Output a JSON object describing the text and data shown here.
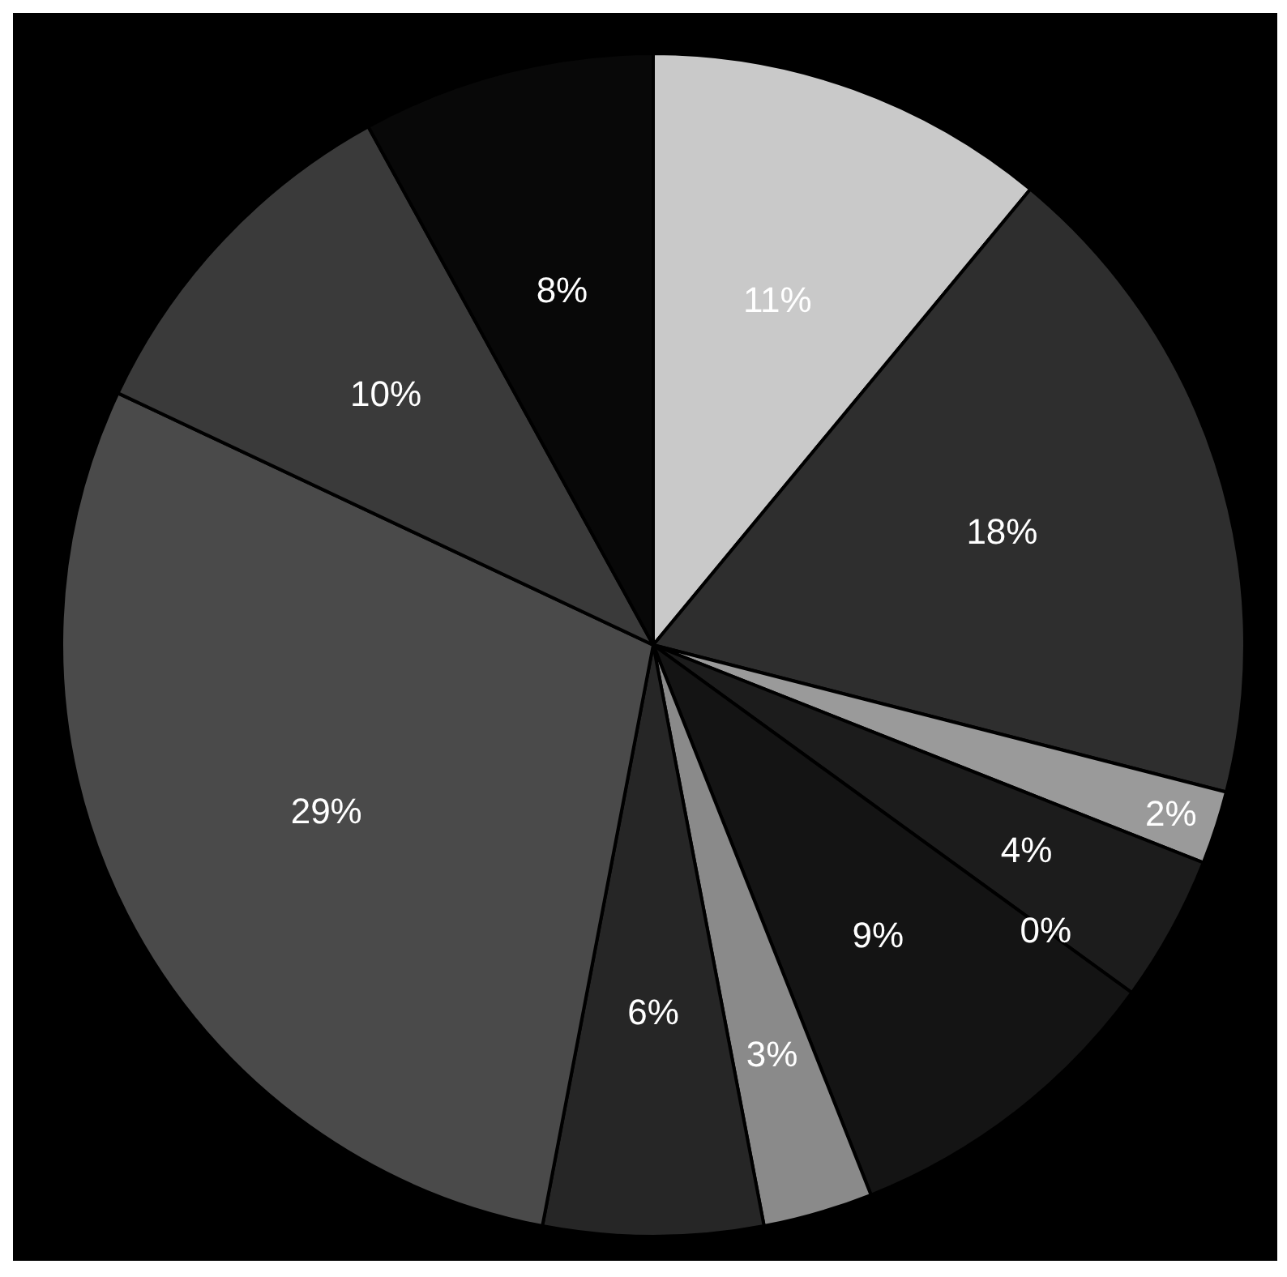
{
  "chart_data": {
    "type": "pie",
    "categories": [
      null,
      null,
      null,
      null,
      null,
      null,
      null,
      null,
      null,
      null,
      null
    ],
    "values": [
      11,
      18,
      2,
      4,
      0,
      9,
      3,
      6,
      29,
      10,
      8
    ],
    "colors": [
      "#c9c9c9",
      "#2e2e2e",
      "#9a9a9a",
      "#1c1c1c",
      "#444444",
      "#141414",
      "#8a8a8a",
      "#262626",
      "#4a4a4a",
      "#3a3a3a",
      "#080808"
    ],
    "value_labels": [
      "11%",
      "18%",
      "2%",
      "4%",
      "0%",
      "9%",
      "3%",
      "6%",
      "29%",
      "10%",
      "8%"
    ]
  }
}
